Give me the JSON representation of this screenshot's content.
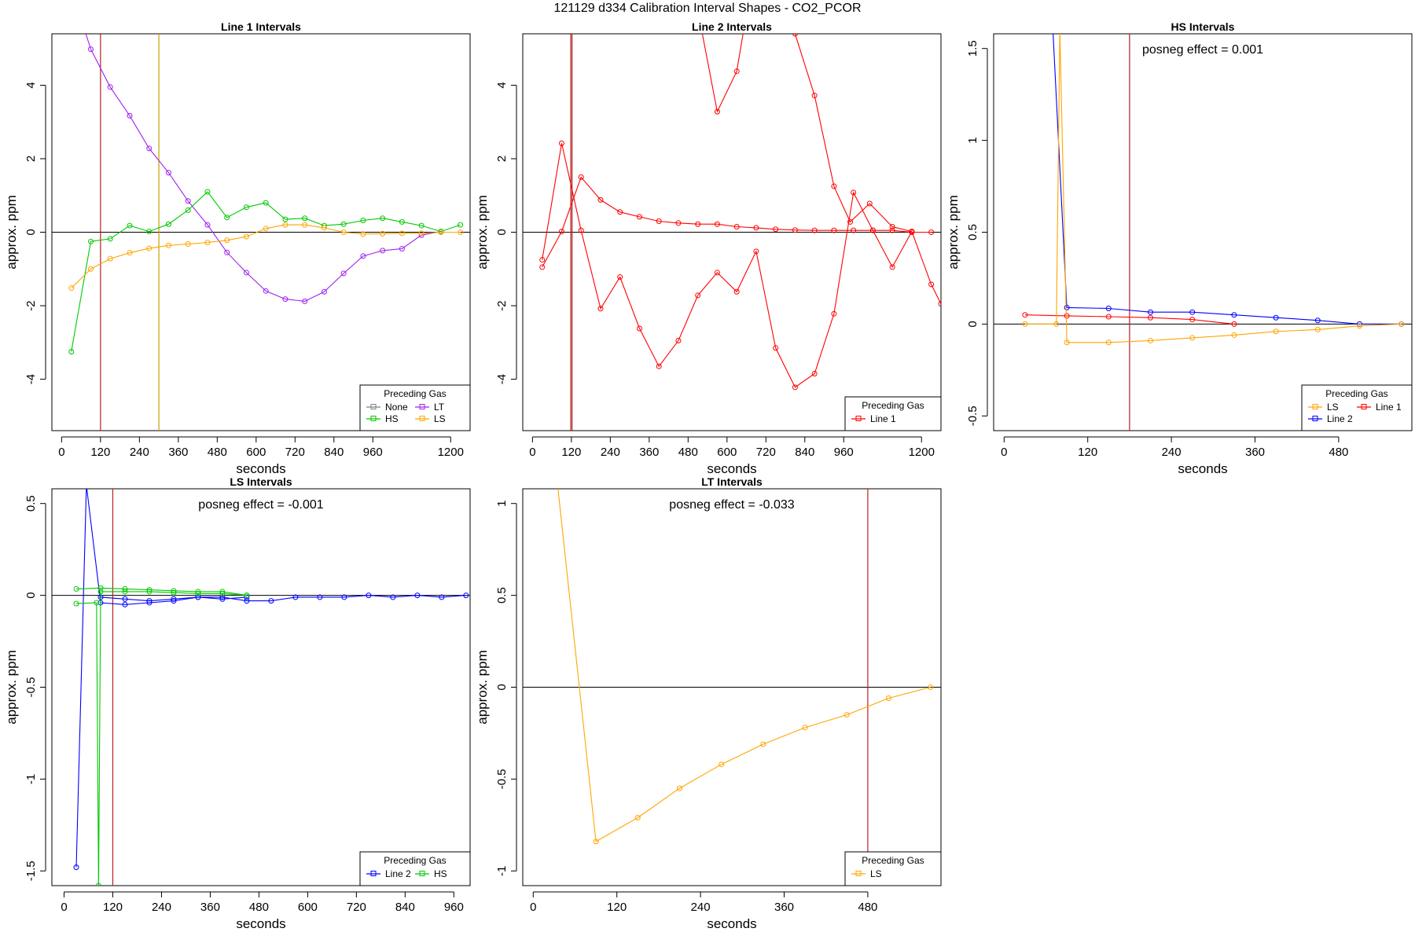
{
  "suptitle": "121129  d334   Calibration Interval Shapes - CO2_PCOR",
  "chart_data": [
    {
      "type": "line",
      "title": "Line 1 Intervals",
      "xlabel": "seconds",
      "ylabel": "approx. ppm",
      "xlim": [
        -30,
        1260
      ],
      "ylim": [
        -5.4,
        5.4
      ],
      "xticks": [
        0,
        120,
        240,
        360,
        480,
        600,
        720,
        840,
        960,
        1200
      ],
      "yticks": [
        -4,
        -2,
        0,
        2,
        4
      ],
      "vlines": [
        {
          "x": 120,
          "color": "#b22222"
        },
        {
          "x": 300,
          "color": "#c8a000"
        }
      ],
      "annotation": "",
      "legend": {
        "title": "Preceding Gas",
        "position": "bottom-right",
        "columns": 2,
        "entries": [
          {
            "name": "None",
            "color": "#808080"
          },
          {
            "name": "LT",
            "color": "#a020f0"
          },
          {
            "name": "HS",
            "color": "#00c800"
          },
          {
            "name": "LS",
            "color": "#ffa500"
          }
        ]
      },
      "series": [
        {
          "name": "LT",
          "color": "#a020f0",
          "x": [
            60,
            90,
            150,
            210,
            270,
            330,
            390,
            450,
            510,
            570,
            630,
            690,
            750,
            810,
            870,
            930,
            990,
            1050,
            1110,
            1170
          ],
          "y": [
            5.8,
            4.98,
            3.95,
            3.17,
            2.28,
            1.62,
            0.85,
            0.2,
            -0.55,
            -1.1,
            -1.6,
            -1.82,
            -1.88,
            -1.62,
            -1.12,
            -0.65,
            -0.5,
            -0.45,
            -0.08,
            0.02
          ]
        },
        {
          "name": "HS",
          "color": "#00c800",
          "x": [
            30,
            90,
            150,
            210,
            270,
            330,
            390,
            450,
            510,
            570,
            630,
            690,
            750,
            810,
            870,
            930,
            990,
            1050,
            1110,
            1170,
            1230
          ],
          "y": [
            -3.25,
            -0.25,
            -0.18,
            0.18,
            0.02,
            0.22,
            0.6,
            1.1,
            0.4,
            0.68,
            0.8,
            0.35,
            0.38,
            0.18,
            0.22,
            0.32,
            0.38,
            0.28,
            0.18,
            0.02,
            0.2
          ]
        },
        {
          "name": "LS",
          "color": "#ffa500",
          "x": [
            30,
            90,
            150,
            210,
            270,
            330,
            390,
            450,
            510,
            570,
            630,
            690,
            750,
            810,
            870,
            930,
            990,
            1050,
            1110,
            1170,
            1230
          ],
          "y": [
            -1.52,
            -1.0,
            -0.72,
            -0.56,
            -0.44,
            -0.36,
            -0.32,
            -0.28,
            -0.22,
            -0.12,
            0.1,
            0.2,
            0.2,
            0.12,
            0.0,
            -0.05,
            -0.04,
            -0.03,
            -0.03,
            0.0,
            0.0
          ]
        }
      ]
    },
    {
      "type": "line",
      "title": "Line 2 Intervals",
      "xlabel": "seconds",
      "ylabel": "approx. ppm",
      "xlim": [
        -30,
        1260
      ],
      "ylim": [
        -5.4,
        5.4
      ],
      "xticks": [
        0,
        120,
        240,
        360,
        480,
        600,
        720,
        840,
        960,
        1200
      ],
      "yticks": [
        -4,
        -2,
        0,
        2,
        4
      ],
      "vlines": [
        {
          "x": 118,
          "color": "#b22222"
        },
        {
          "x": 122,
          "color": "#b22222"
        }
      ],
      "annotation": "",
      "legend": {
        "title": "Preceding Gas",
        "position": "bottom-right",
        "columns": 1,
        "entries": [
          {
            "name": "Line 1",
            "color": "#ff0000"
          }
        ]
      },
      "series": [
        {
          "name": "Line 1",
          "color": "#ff0000",
          "x": [
            30,
            90,
            150,
            210,
            270,
            330,
            390,
            450,
            510,
            570,
            630,
            690,
            750,
            810,
            870,
            930,
            990,
            1050,
            1110,
            1170,
            1230
          ],
          "y": [
            -0.95,
            0.02,
            1.5,
            0.88,
            0.55,
            0.42,
            0.3,
            0.25,
            0.22,
            0.22,
            0.15,
            0.12,
            0.08,
            0.06,
            0.05,
            0.05,
            0.05,
            0.05,
            0.05,
            0.0,
            0.0
          ]
        },
        {
          "name": "",
          "color": "#ff0000",
          "x": [
            30,
            90,
            150,
            210,
            270,
            330,
            390,
            450,
            510,
            570,
            630,
            690,
            750,
            810,
            870,
            930,
            990,
            1050,
            1110,
            1170,
            1230,
            1260
          ],
          "y": [
            -0.75,
            2.42,
            0.05,
            -2.08,
            -1.22,
            -2.62,
            -3.65,
            -2.95,
            -1.72,
            -1.1,
            -1.62,
            -0.52,
            -3.15,
            -4.22,
            -3.85,
            -2.22,
            1.08,
            0.05,
            -0.95,
            0.02,
            -1.42,
            -1.95
          ]
        },
        {
          "name": "",
          "color": "#ff0000",
          "x": [
            500,
            570,
            630,
            680,
            750,
            810,
            870,
            930,
            980,
            1040,
            1110,
            1170
          ],
          "y": [
            6.5,
            3.28,
            4.38,
            7.0,
            8.0,
            5.4,
            3.72,
            1.25,
            0.28,
            0.78,
            0.15,
            0.02
          ]
        }
      ]
    },
    {
      "type": "line",
      "title": "HS Intervals",
      "xlabel": "seconds",
      "ylabel": "approx. ppm",
      "xlim": [
        -15,
        585
      ],
      "ylim": [
        -0.58,
        1.58
      ],
      "xticks": [
        0,
        120,
        240,
        360,
        480
      ],
      "yticks": [
        -0.5,
        0.0,
        0.5,
        1.0,
        1.5
      ],
      "vlines": [
        {
          "x": 180,
          "color": "#b22222"
        }
      ],
      "annotation": "posneg effect = 0.001",
      "legend": {
        "title": "Preceding Gas",
        "position": "bottom-right",
        "columns": 2,
        "entries": [
          {
            "name": "LS",
            "color": "#ffa500"
          },
          {
            "name": "Line 1",
            "color": "#ff0000"
          },
          {
            "name": "Line 2",
            "color": "#0000ff"
          }
        ]
      },
      "series": [
        {
          "name": "Line 2",
          "color": "#0000ff",
          "x": [
            70,
            90,
            150,
            210,
            270,
            330,
            390,
            450,
            510,
            570
          ],
          "y": [
            1.6,
            0.09,
            0.085,
            0.065,
            0.065,
            0.05,
            0.035,
            0.02,
            0.0,
            0.0
          ]
        },
        {
          "name": "Line 1",
          "color": "#ff0000",
          "x": [
            30,
            90,
            150,
            210,
            270,
            330
          ],
          "y": [
            0.05,
            0.045,
            0.04,
            0.035,
            0.025,
            0.0
          ]
        },
        {
          "name": "LS",
          "color": "#ffa500",
          "x": [
            30,
            75,
            80,
            90,
            150,
            210,
            270,
            330,
            390,
            450,
            510,
            570
          ],
          "y": [
            0.0,
            0.0,
            1.6,
            -0.1,
            -0.1,
            -0.09,
            -0.075,
            -0.06,
            -0.04,
            -0.03,
            -0.01,
            0.0
          ]
        }
      ]
    },
    {
      "type": "line",
      "title": "LS Intervals",
      "xlabel": "seconds",
      "ylabel": "approx. ppm",
      "xlim": [
        -30,
        1000
      ],
      "ylim": [
        -1.58,
        0.58
      ],
      "xticks": [
        0,
        120,
        240,
        360,
        480,
        600,
        720,
        840,
        960
      ],
      "yticks": [
        -1.5,
        -1.0,
        -0.5,
        0.0,
        0.5
      ],
      "vlines": [
        {
          "x": 120,
          "color": "#b22222"
        }
      ],
      "annotation": "posneg effect = -0.001",
      "legend": {
        "title": "Preceding Gas",
        "position": "bottom-right",
        "columns": 2,
        "entries": [
          {
            "name": "Line 2",
            "color": "#0000ff"
          },
          {
            "name": "HS",
            "color": "#00c800"
          }
        ]
      },
      "series": [
        {
          "name": "Line 2",
          "color": "#0000ff",
          "x": [
            30,
            55,
            90,
            150,
            210,
            270,
            330,
            390,
            450,
            510,
            570,
            630,
            690,
            750,
            810,
            870,
            930,
            990
          ],
          "y": [
            -1.48,
            0.6,
            -0.04,
            -0.05,
            -0.04,
            -0.03,
            -0.01,
            -0.01,
            -0.03,
            -0.03,
            -0.01,
            -0.01,
            -0.01,
            0.0,
            -0.01,
            0.0,
            -0.01,
            0.0
          ]
        },
        {
          "name": "",
          "color": "#0000ff",
          "x": [
            90,
            150,
            210,
            270,
            330,
            390,
            450
          ],
          "y": [
            -0.01,
            -0.02,
            -0.03,
            -0.02,
            -0.01,
            -0.02,
            -0.01
          ]
        },
        {
          "name": "HS",
          "color": "#00c800",
          "x": [
            30,
            90,
            150,
            210,
            270,
            330,
            390,
            450
          ],
          "y": [
            0.035,
            0.04,
            0.035,
            0.03,
            0.025,
            0.02,
            0.02,
            0.0
          ]
        },
        {
          "name": "",
          "color": "#00c800",
          "x": [
            30,
            80,
            85,
            90,
            150,
            210,
            270,
            330,
            390,
            450
          ],
          "y": [
            -0.045,
            -0.04,
            -1.58,
            0.02,
            0.02,
            0.02,
            0.015,
            0.01,
            0.01,
            0.0
          ]
        }
      ]
    },
    {
      "type": "line",
      "title": "LT Intervals",
      "xlabel": "seconds",
      "ylabel": "approx. ppm",
      "xlim": [
        -15,
        585
      ],
      "ylim": [
        -1.08,
        1.08
      ],
      "xticks": [
        0,
        120,
        240,
        360,
        480
      ],
      "yticks": [
        -1.0,
        -0.5,
        0.0,
        0.5,
        1.0
      ],
      "vlines": [
        {
          "x": 480,
          "color": "#b22222"
        }
      ],
      "annotation": "posneg effect = -0.033",
      "legend": {
        "title": "Preceding Gas",
        "position": "bottom-right",
        "columns": 1,
        "entries": [
          {
            "name": "LS",
            "color": "#ffa500"
          }
        ]
      },
      "series": [
        {
          "name": "LS",
          "color": "#ffa500",
          "x": [
            35,
            90,
            150,
            210,
            270,
            330,
            390,
            450,
            510,
            570
          ],
          "y": [
            1.1,
            -0.84,
            -0.71,
            -0.55,
            -0.42,
            -0.31,
            -0.22,
            -0.15,
            -0.06,
            0.0
          ]
        }
      ]
    }
  ]
}
